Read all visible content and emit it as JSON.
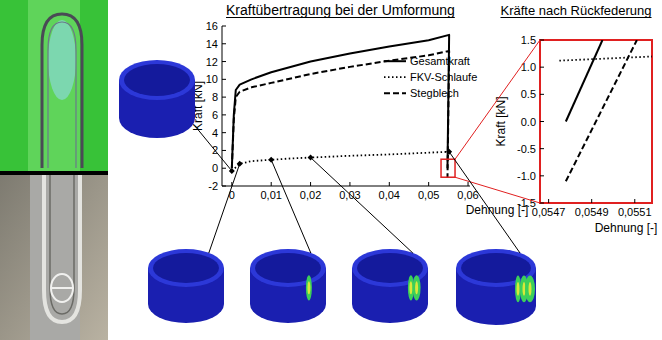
{
  "chart_data": [
    {
      "type": "line",
      "title": "Kraftübertragung bei der Umformung",
      "x_label": "Dehnung [-]",
      "y_label": "Kraft [kN]",
      "xlim": [
        -0.0025,
        0.0605
      ],
      "ylim": [
        -2,
        16
      ],
      "xticks": [
        0,
        {
          "value": 0.01,
          "label": "0,01"
        },
        {
          "value": 0.02,
          "label": "0,02"
        },
        {
          "value": 0.03,
          "label": "0,03"
        },
        {
          "value": 0.04,
          "label": "0,04"
        },
        {
          "value": 0.05,
          "label": "0,05"
        },
        {
          "value": 0.06,
          "label": "0,06"
        }
      ],
      "yticks": [
        -2,
        0,
        2,
        4,
        6,
        8,
        10,
        12,
        14,
        16
      ],
      "grid": false,
      "legend": "upper right",
      "series": [
        {
          "name": "Gesamtkraft",
          "color": "#000000",
          "line_style": "solid",
          "x": [
            0,
            0.0005,
            0.001,
            0.002,
            0.005,
            0.01,
            0.02,
            0.03,
            0.04,
            0.05,
            0.0552,
            0.05478
          ],
          "values": [
            0,
            6,
            8.8,
            9.4,
            10,
            10.8,
            12,
            12.9,
            13.7,
            14.4,
            15,
            0
          ]
        },
        {
          "name": "FKV-Schlaufe",
          "color": "#000000",
          "line_style": "dotted",
          "x": [
            0,
            0.002,
            0.005,
            0.01,
            0.015,
            0.02,
            0.03,
            0.04,
            0.05,
            0.0552,
            0.05475
          ],
          "values": [
            -0.3,
            0.5,
            0.8,
            0.95,
            1.1,
            1.2,
            1.4,
            1.55,
            1.75,
            1.85,
            1.12
          ]
        },
        {
          "name": "Stegblech",
          "color": "#000000",
          "line_style": "dashed",
          "x": [
            0,
            0.0005,
            0.001,
            0.002,
            0.005,
            0.01,
            0.02,
            0.03,
            0.04,
            0.05,
            0.0552,
            0.05478
          ],
          "values": [
            0,
            5.5,
            8,
            8.6,
            9.1,
            9.6,
            10.6,
            11.4,
            12.1,
            12.7,
            13.2,
            -1.1
          ]
        }
      ]
    },
    {
      "type": "line",
      "title": "Kräfte nach Rückfederung",
      "x_label": "Dehnung [-]",
      "y_label": "Kraft [kN]",
      "xlim": [
        0.05466,
        0.05518
      ],
      "ylim": [
        -1.5,
        1.5
      ],
      "xticks": [
        {
          "value": 0.0547,
          "label": "0,0547"
        },
        {
          "value": 0.0549,
          "label": "0,0549"
        },
        {
          "value": 0.0551,
          "label": "0,0551"
        }
      ],
      "yticks": [
        -1.5,
        {
          "value": -1,
          "label": "-1.0"
        },
        -0.5,
        {
          "value": 0,
          "label": "0.0"
        },
        0.5,
        {
          "value": 1,
          "label": "1.0"
        },
        1.5
      ],
      "grid": false,
      "color": "#e02020",
      "series": [
        {
          "color": "#000000",
          "line_style": "solid",
          "x": [
            0.05478,
            0.05495
          ],
          "values": [
            0,
            1.5
          ]
        },
        {
          "color": "#000000",
          "line_style": "dotted",
          "x": [
            0.05475,
            0.0552
          ],
          "values": [
            1.12,
            1.2
          ]
        },
        {
          "color": "#000000",
          "line_style": "dashed",
          "x": [
            0.05478,
            0.05511
          ],
          "values": [
            -1.1,
            1.5
          ]
        }
      ]
    }
  ]
}
